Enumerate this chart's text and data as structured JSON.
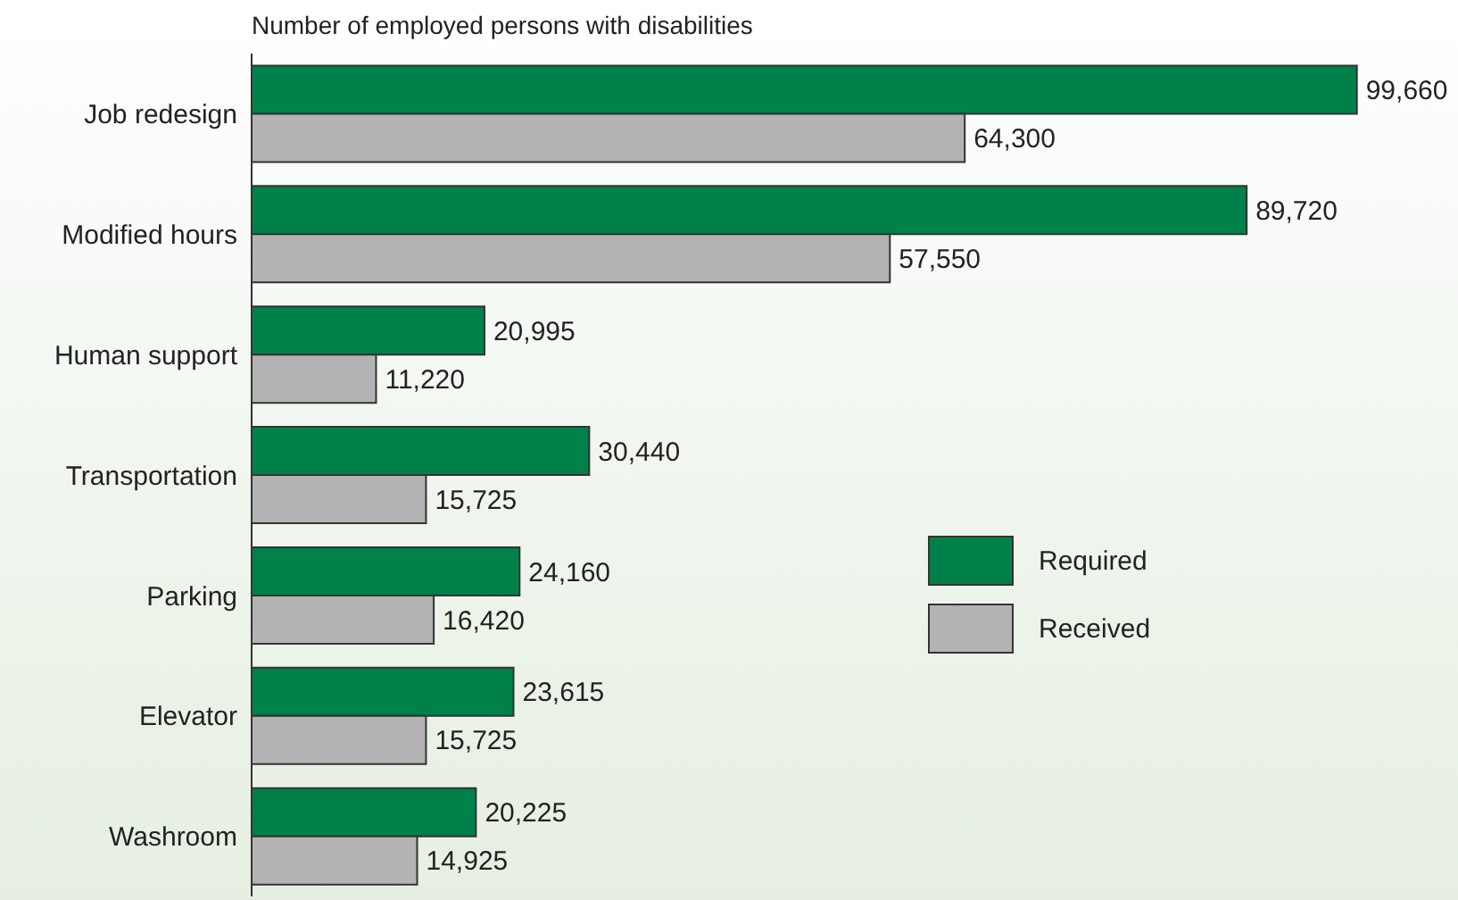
{
  "chart_data": {
    "type": "bar",
    "orientation": "horizontal",
    "title": "Number of employed persons with disabilities",
    "categories": [
      "Job redesign",
      "Modified hours",
      "Human support",
      "Transportation",
      "Parking",
      "Elevator",
      "Washroom"
    ],
    "series": [
      {
        "name": "Required",
        "color": "#00814a",
        "values": [
          99660,
          89720,
          20995,
          30440,
          24160,
          23615,
          20225
        ],
        "value_labels": [
          "99,660",
          "89,720",
          "20,995",
          "30,440",
          "24,160",
          "23,615",
          "20,225"
        ]
      },
      {
        "name": "Received",
        "color": "#b3b3b3",
        "values": [
          64300,
          57550,
          11220,
          15725,
          16420,
          15725,
          14925
        ],
        "value_labels": [
          "64,300",
          "57,550",
          "11,220",
          "15,725",
          "16,420",
          "15,725",
          "14,925"
        ]
      }
    ],
    "legend": "right",
    "grid": false
  }
}
